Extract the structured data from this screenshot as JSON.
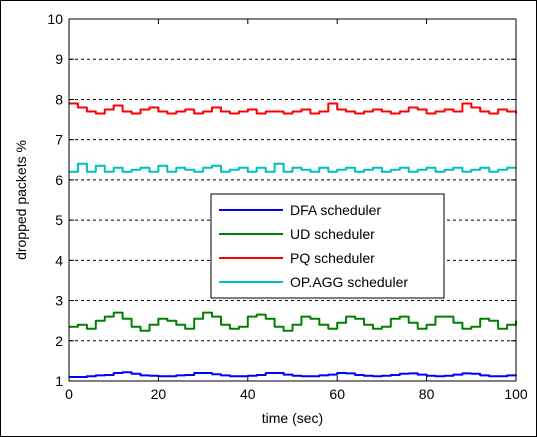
{
  "chart_data": {
    "type": "line",
    "title": "",
    "xlabel": "time (sec)",
    "ylabel": "dropped packets %",
    "xlim": [
      0,
      100
    ],
    "ylim": [
      1,
      10
    ],
    "xticks": [
      0,
      20,
      40,
      60,
      80,
      100
    ],
    "yticks": [
      1,
      2,
      3,
      4,
      5,
      6,
      7,
      8,
      9,
      10
    ],
    "grid": "horizontal dashed",
    "legend_position": "center-right",
    "series": [
      {
        "name": "DFA scheduler",
        "color": "#0000ff",
        "x": [
          0,
          2,
          4,
          6,
          8,
          10,
          12,
          14,
          16,
          18,
          20,
          22,
          24,
          26,
          28,
          30,
          32,
          34,
          36,
          38,
          40,
          42,
          44,
          46,
          48,
          50,
          52,
          54,
          56,
          58,
          60,
          62,
          64,
          66,
          68,
          70,
          72,
          74,
          76,
          78,
          80,
          82,
          84,
          86,
          88,
          90,
          92,
          94,
          96,
          98,
          100
        ],
        "y": [
          1.1,
          1.1,
          1.12,
          1.14,
          1.15,
          1.2,
          1.22,
          1.18,
          1.14,
          1.13,
          1.12,
          1.12,
          1.14,
          1.15,
          1.2,
          1.2,
          1.17,
          1.14,
          1.12,
          1.12,
          1.13,
          1.15,
          1.2,
          1.2,
          1.16,
          1.13,
          1.12,
          1.12,
          1.14,
          1.16,
          1.2,
          1.19,
          1.15,
          1.13,
          1.12,
          1.13,
          1.15,
          1.18,
          1.19,
          1.16,
          1.13,
          1.12,
          1.13,
          1.16,
          1.19,
          1.18,
          1.14,
          1.12,
          1.12,
          1.14,
          1.12
        ]
      },
      {
        "name": "UD scheduler",
        "color": "#008000",
        "x": [
          0,
          2,
          4,
          6,
          8,
          10,
          12,
          14,
          16,
          18,
          20,
          22,
          24,
          26,
          28,
          30,
          32,
          34,
          36,
          38,
          40,
          42,
          44,
          46,
          48,
          50,
          52,
          54,
          56,
          58,
          60,
          62,
          64,
          66,
          68,
          70,
          72,
          74,
          76,
          78,
          80,
          82,
          84,
          86,
          88,
          90,
          92,
          94,
          96,
          98,
          100
        ],
        "y": [
          2.35,
          2.4,
          2.3,
          2.5,
          2.6,
          2.7,
          2.55,
          2.35,
          2.25,
          2.4,
          2.55,
          2.5,
          2.4,
          2.3,
          2.55,
          2.7,
          2.6,
          2.4,
          2.3,
          2.35,
          2.6,
          2.65,
          2.55,
          2.35,
          2.25,
          2.4,
          2.6,
          2.55,
          2.4,
          2.3,
          2.45,
          2.6,
          2.55,
          2.4,
          2.3,
          2.35,
          2.55,
          2.6,
          2.45,
          2.3,
          2.4,
          2.6,
          2.6,
          2.45,
          2.3,
          2.35,
          2.55,
          2.5,
          2.3,
          2.4,
          2.5
        ]
      },
      {
        "name": "PQ scheduler",
        "color": "#ff0000",
        "x": [
          0,
          2,
          4,
          6,
          8,
          10,
          12,
          14,
          16,
          18,
          20,
          22,
          24,
          26,
          28,
          30,
          32,
          34,
          36,
          38,
          40,
          42,
          44,
          46,
          48,
          50,
          52,
          54,
          56,
          58,
          60,
          62,
          64,
          66,
          68,
          70,
          72,
          74,
          76,
          78,
          80,
          82,
          84,
          86,
          88,
          90,
          92,
          94,
          96,
          98,
          100
        ],
        "y": [
          7.9,
          7.8,
          7.7,
          7.65,
          7.75,
          7.85,
          7.7,
          7.65,
          7.75,
          7.8,
          7.7,
          7.65,
          7.7,
          7.75,
          7.65,
          7.7,
          7.8,
          7.7,
          7.65,
          7.7,
          7.75,
          7.65,
          7.7,
          7.7,
          7.65,
          7.7,
          7.75,
          7.65,
          7.7,
          7.9,
          7.75,
          7.7,
          7.65,
          7.7,
          7.75,
          7.7,
          7.65,
          7.7,
          7.8,
          7.75,
          7.65,
          7.7,
          7.75,
          7.7,
          7.9,
          7.8,
          7.7,
          7.65,
          7.75,
          7.7,
          7.65
        ]
      },
      {
        "name": "OP.AGG scheduler",
        "color": "#00bfbf",
        "x": [
          0,
          2,
          4,
          6,
          8,
          10,
          12,
          14,
          16,
          18,
          20,
          22,
          24,
          26,
          28,
          30,
          32,
          34,
          36,
          38,
          40,
          42,
          44,
          46,
          48,
          50,
          52,
          54,
          56,
          58,
          60,
          62,
          64,
          66,
          68,
          70,
          72,
          74,
          76,
          78,
          80,
          82,
          84,
          86,
          88,
          90,
          92,
          94,
          96,
          98,
          100
        ],
        "y": [
          6.2,
          6.4,
          6.2,
          6.35,
          6.2,
          6.3,
          6.2,
          6.25,
          6.3,
          6.2,
          6.35,
          6.2,
          6.3,
          6.25,
          6.2,
          6.3,
          6.35,
          6.2,
          6.25,
          6.3,
          6.2,
          6.3,
          6.2,
          6.4,
          6.2,
          6.3,
          6.25,
          6.2,
          6.3,
          6.2,
          6.25,
          6.3,
          6.2,
          6.25,
          6.3,
          6.2,
          6.25,
          6.3,
          6.2,
          6.25,
          6.3,
          6.2,
          6.25,
          6.3,
          6.2,
          6.25,
          6.3,
          6.2,
          6.25,
          6.3,
          6.3
        ]
      }
    ]
  }
}
